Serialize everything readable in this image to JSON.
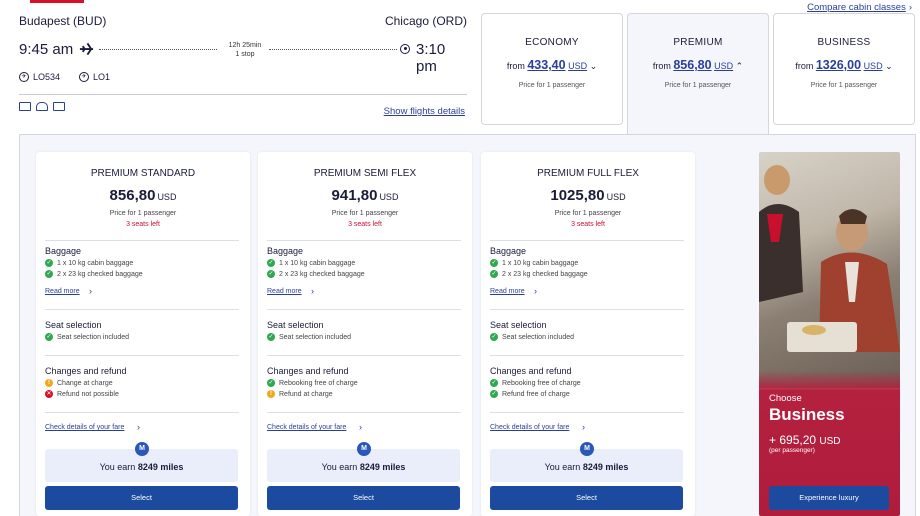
{
  "header": {
    "compare_link": "Compare cabin classes"
  },
  "flight": {
    "origin": "Budapest (BUD)",
    "destination": "Chicago (ORD)",
    "depart_time": "9:45 am",
    "arrive_time": "3:10 pm",
    "duration": "12h 25min",
    "stops": "1 stop",
    "flight_1": "LO534",
    "flight_2": "LO1",
    "details_link": "Show flights details"
  },
  "cabins": [
    {
      "name": "ECONOMY",
      "from": "from",
      "amount": "433,40",
      "currency": "USD",
      "sub": "Price for 1 passenger"
    },
    {
      "name": "PREMIUM",
      "from": "from",
      "amount": "856,80",
      "currency": "USD",
      "sub": "Price for 1 passenger"
    },
    {
      "name": "BUSINESS",
      "from": "from",
      "amount": "1326,00",
      "currency": "USD",
      "sub": "Price for 1 passenger"
    }
  ],
  "fares": [
    {
      "name": "PREMIUM STANDARD",
      "price": "856,80",
      "currency": "USD",
      "sub": "Price for 1 passenger",
      "seats": "3 seats left",
      "baggage_title": "Baggage",
      "baggage_1": "1 x 10 kg cabin baggage",
      "baggage_2": "2 x 23 kg checked baggage",
      "read_more": "Read more",
      "seat_title": "Seat selection",
      "seat_1": "Seat selection included",
      "changes_title": "Changes and refund",
      "change_1": "Change at charge",
      "change_2": "Refund not possible",
      "details_link": "Check details of your fare",
      "miles_prefix": "You earn",
      "miles": "8249 miles",
      "badge": "M",
      "select": "Select"
    },
    {
      "name": "PREMIUM SEMI FLEX",
      "price": "941,80",
      "currency": "USD",
      "sub": "Price for 1 passenger",
      "seats": "3 seats left",
      "baggage_title": "Baggage",
      "baggage_1": "1 x 10 kg cabin baggage",
      "baggage_2": "2 x 23 kg checked baggage",
      "read_more": "Read more",
      "seat_title": "Seat selection",
      "seat_1": "Seat selection included",
      "changes_title": "Changes and refund",
      "change_1": "Rebooking free of charge",
      "change_2": "Refund at charge",
      "details_link": "Check details of your fare",
      "miles_prefix": "You earn",
      "miles": "8249 miles",
      "badge": "M",
      "select": "Select"
    },
    {
      "name": "PREMIUM FULL FLEX",
      "price": "1025,80",
      "currency": "USD",
      "sub": "Price for 1 passenger",
      "seats": "3 seats left",
      "baggage_title": "Baggage",
      "baggage_1": "1 x 10 kg cabin baggage",
      "baggage_2": "2 x 23 kg checked baggage",
      "read_more": "Read more",
      "seat_title": "Seat selection",
      "seat_1": "Seat selection included",
      "changes_title": "Changes and refund",
      "change_1": "Rebooking free of charge",
      "change_2": "Refund free of charge",
      "details_link": "Check details of your fare",
      "miles_prefix": "You earn",
      "miles": "8249 miles",
      "badge": "M",
      "select": "Select"
    }
  ],
  "promo": {
    "choose": "Choose",
    "title": "Business",
    "price": "+ 695,20",
    "currency": "USD",
    "per": "(per passenger)",
    "button": "Experience luxury"
  },
  "colors": {
    "accent": "#1c4a9f",
    "link": "#2a3f9a",
    "alert": "#c8102e",
    "ok": "#2fa84f",
    "warn": "#f0a81a"
  }
}
